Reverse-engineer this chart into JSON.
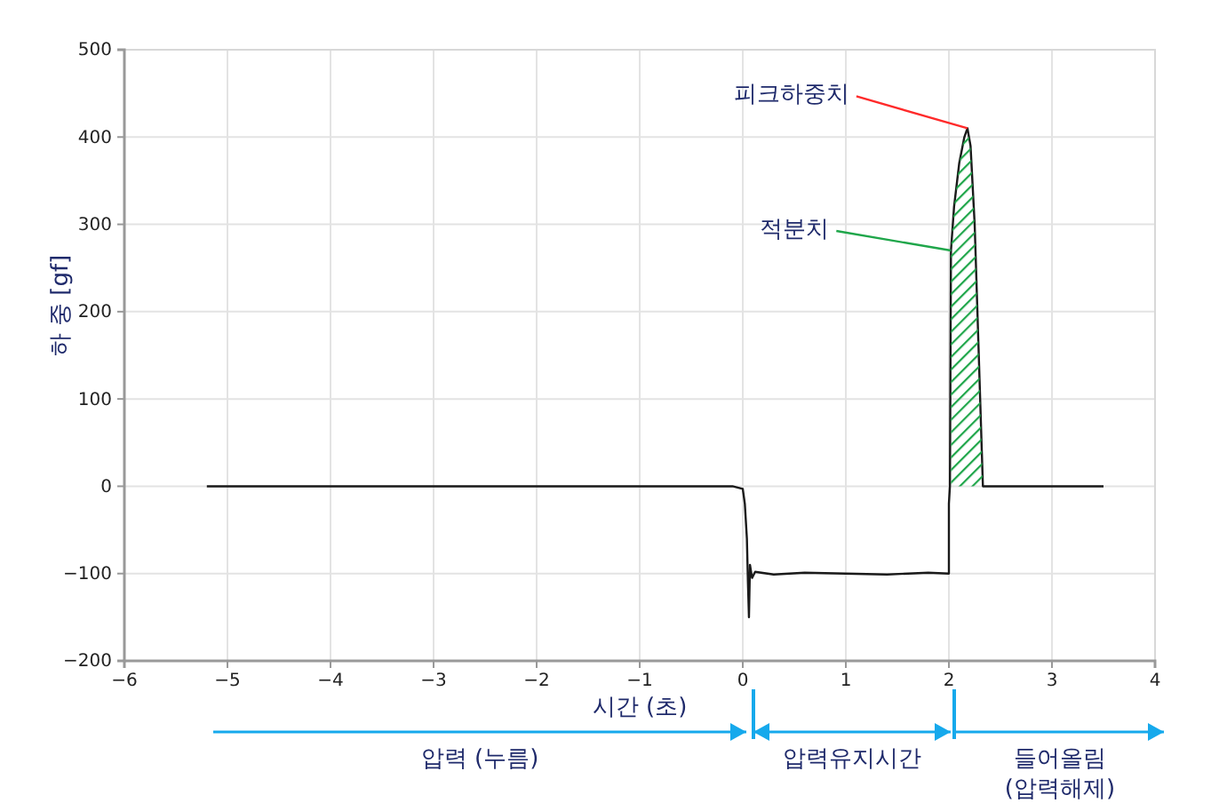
{
  "chart_data": {
    "type": "line",
    "xlabel": "시간 (초)",
    "ylabel": "하 중 [gf]",
    "xlim": [
      -6,
      4
    ],
    "xticks": [
      -6,
      -5,
      -4,
      -3,
      -2,
      -1,
      0,
      1,
      2,
      3,
      4
    ],
    "ylim": [
      -200,
      500
    ],
    "yticks": [
      -200,
      -100,
      0,
      100,
      200,
      300,
      400,
      500
    ],
    "grid": true,
    "series": [
      {
        "color": "#1a1a1a",
        "x": [
          -5.2,
          -4,
          -3,
          -2,
          -1,
          -0.1,
          0,
          0.02,
          0.04,
          0.05,
          0.06,
          0.07,
          0.09,
          0.12,
          0.3,
          0.6,
          1,
          1.4,
          1.8,
          2.0,
          2.0,
          2.01,
          2.02,
          2.05,
          2.1,
          2.15,
          2.18,
          2.21,
          2.25,
          2.29,
          2.33,
          2.36,
          2.5,
          3,
          3.5
        ],
        "values": [
          0,
          0,
          0,
          0,
          0,
          0,
          -3,
          -20,
          -60,
          -110,
          -150,
          -90,
          -105,
          -98,
          -101,
          -99,
          -100,
          -101,
          -99,
          -100,
          -20,
          0,
          270,
          320,
          370,
          400,
          410,
          390,
          300,
          150,
          0,
          0,
          0,
          0,
          0
        ]
      },
      {
        "type": "area",
        "color": "#1fa64a",
        "x": [
          2.02,
          2.05,
          2.1,
          2.15,
          2.18,
          2.21,
          2.25,
          2.29,
          2.33
        ],
        "values": [
          270,
          320,
          370,
          400,
          410,
          390,
          300,
          150,
          0
        ]
      }
    ],
    "annotations": [
      {
        "text": "피크하중치",
        "x": 2.18,
        "y": 410
      },
      {
        "text": "적분치",
        "x": 2.02,
        "y": 270
      },
      "압력 (누름)",
      "압력유지시간",
      "들어올림\n(압력해제)"
    ]
  }
}
